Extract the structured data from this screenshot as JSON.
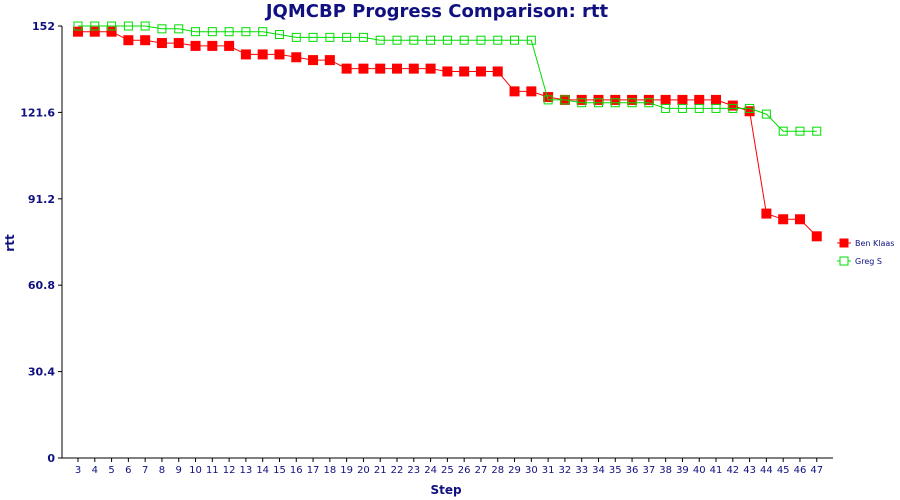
{
  "chart_data": {
    "type": "line",
    "title": "JQMCBP Progress Comparison: rtt",
    "xlabel": "Step",
    "ylabel": "rtt",
    "ylim": [
      0,
      152
    ],
    "yticks": [
      "0",
      "30.4",
      "60.8",
      "91.2",
      "121.6",
      "152"
    ],
    "x": [
      3,
      4,
      5,
      6,
      7,
      8,
      9,
      10,
      11,
      12,
      13,
      14,
      15,
      16,
      17,
      18,
      19,
      20,
      21,
      22,
      23,
      24,
      25,
      26,
      27,
      28,
      29,
      30,
      31,
      32,
      33,
      34,
      35,
      36,
      37,
      38,
      39,
      40,
      41,
      42,
      43,
      44,
      45,
      46,
      47
    ],
    "legend_position": "right",
    "grid": false,
    "series": [
      {
        "name": "Ben Klaas",
        "color": "#ff0000",
        "marker": "filled-square",
        "values": [
          150,
          150,
          150,
          147,
          147,
          146,
          146,
          145,
          145,
          145,
          142,
          142,
          142,
          141,
          140,
          140,
          137,
          137,
          137,
          137,
          137,
          137,
          136,
          136,
          136,
          136,
          129,
          129,
          127,
          126,
          126,
          126,
          126,
          126,
          126,
          126,
          126,
          126,
          126,
          124,
          122,
          86,
          84,
          84,
          78
        ]
      },
      {
        "name": "Greg S",
        "color": "#00dd00",
        "marker": "hollow-square",
        "values": [
          152,
          152,
          152,
          152,
          152,
          151,
          151,
          150,
          150,
          150,
          150,
          150,
          149,
          148,
          148,
          148,
          148,
          148,
          147,
          147,
          147,
          147,
          147,
          147,
          147,
          147,
          147,
          147,
          126,
          126,
          125,
          125,
          125,
          125,
          125,
          123,
          123,
          123,
          123,
          123,
          123,
          121,
          115,
          115,
          115
        ]
      }
    ]
  }
}
